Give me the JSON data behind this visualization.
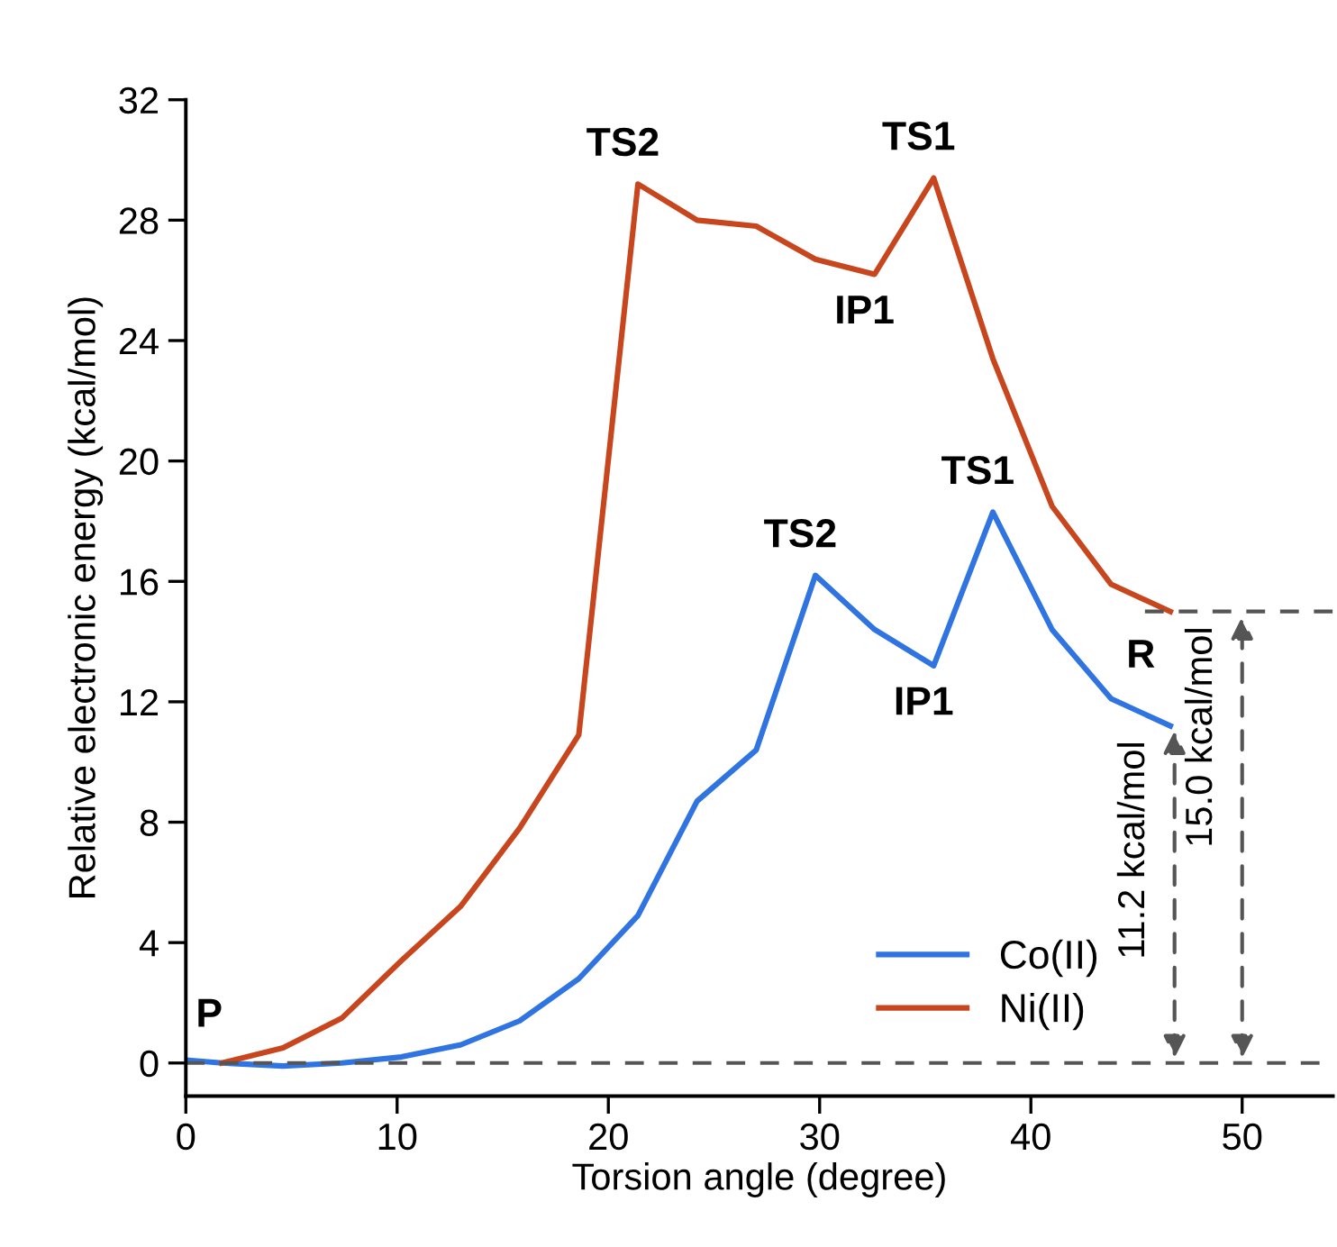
{
  "chart_data": {
    "type": "line",
    "xlabel": "Torsion angle (degree)",
    "ylabel": "Relative electronic energy (kcal/mol)",
    "xlim": [
      0,
      54.3
    ],
    "xticks": [
      0,
      10,
      20,
      30,
      40,
      50
    ],
    "ylim": [
      -1.1,
      32
    ],
    "yticks": [
      0,
      4,
      8,
      12,
      16,
      20,
      24,
      28,
      32
    ],
    "grid": false,
    "legend": "bottom",
    "marker": "none",
    "line_style": "solid",
    "series": [
      {
        "name": "Co(II)",
        "color": "#2f74e0",
        "x": [
          0,
          1.7,
          4.6,
          7.4,
          10.2,
          13.0,
          15.8,
          18.6,
          21.4,
          24.2,
          27.0,
          29.8,
          32.6,
          35.4,
          38.2,
          41.0,
          43.8,
          46.6
        ],
        "values": [
          0.1,
          0,
          -0.1,
          0,
          0.2,
          0.6,
          1.4,
          2.8,
          4.9,
          8.7,
          10.4,
          16.2,
          14.4,
          13.2,
          18.3,
          14.4,
          12.1,
          11.2
        ]
      },
      {
        "name": "Ni(II)",
        "color": "#c8461e",
        "x": [
          1.7,
          4.6,
          7.4,
          10.2,
          13.0,
          15.8,
          18.6,
          21.4,
          24.2,
          27.0,
          29.8,
          32.6,
          35.4,
          38.2,
          41.0,
          43.8,
          46.6
        ],
        "values": [
          0,
          0.5,
          1.5,
          3.4,
          5.2,
          7.8,
          10.9,
          29.2,
          28.0,
          27.8,
          26.7,
          26.2,
          29.4,
          23.4,
          18.5,
          15.9,
          15.0
        ]
      }
    ],
    "ref_lines": [
      {
        "axis": "y",
        "value": 0,
        "color": "#555555",
        "line_style": "dashed"
      },
      {
        "axis": "y",
        "value": 15.0,
        "color": "#555555",
        "line_style": "dashed"
      }
    ],
    "annotations": [
      {
        "text": "P",
        "x": 0,
        "y": 0.1
      },
      {
        "text": "TS2",
        "x": 21.4,
        "y": 29.2
      },
      {
        "text": "TS1",
        "x": 35.4,
        "y": 29.4
      },
      {
        "text": "IP1",
        "x": 32.6,
        "y": 26.2
      },
      {
        "text": "TS2",
        "x": 29.8,
        "y": 16.2
      },
      {
        "text": "TS1",
        "x": 38.2,
        "y": 18.3
      },
      {
        "text": "IP1",
        "x": 35.4,
        "y": 13.2
      },
      {
        "text": "R",
        "x": 46.6,
        "y": 11.2
      },
      {
        "text": "11.2 kcal/mol",
        "x": 46.8,
        "y": 11.2
      },
      {
        "text": "15.0 kcal/mol",
        "x": 50.0,
        "y": 15.0
      }
    ]
  }
}
